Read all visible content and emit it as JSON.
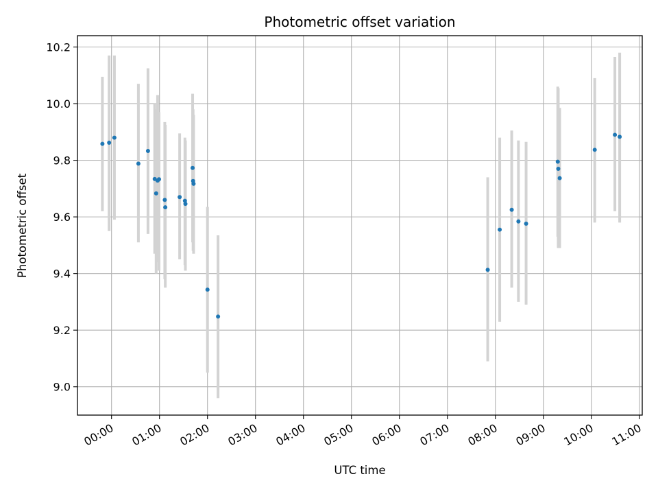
{
  "chart_data": {
    "type": "scatter",
    "title": "Photometric offset variation",
    "xlabel": "UTC time",
    "ylabel": "Photometric offset",
    "x_unit": "hours",
    "xlim": [
      -0.71,
      11.06
    ],
    "ylim": [
      8.9,
      10.24
    ],
    "x_ticks": [
      0,
      1,
      2,
      3,
      4,
      5,
      6,
      7,
      8,
      9,
      10,
      11
    ],
    "x_tick_labels": [
      "00:00",
      "01:00",
      "02:00",
      "03:00",
      "04:00",
      "05:00",
      "06:00",
      "07:00",
      "08:00",
      "09:00",
      "10:00",
      "11:00"
    ],
    "y_ticks": [
      9.0,
      9.2,
      9.4,
      9.6,
      9.8,
      10.0,
      10.2
    ],
    "y_tick_labels": [
      "9.0",
      "9.2",
      "9.4",
      "9.6",
      "9.8",
      "10.0",
      "10.2"
    ],
    "grid": true,
    "colors": {
      "point": "#1f77b4",
      "errorbar": "#d3d3d3",
      "grid": "#b0b0b0"
    },
    "points": [
      {
        "x": -0.19,
        "y": 9.858,
        "lo": 9.62,
        "hi": 10.095
      },
      {
        "x": -0.05,
        "y": 9.862,
        "lo": 9.55,
        "hi": 10.17
      },
      {
        "x": 0.06,
        "y": 9.88,
        "lo": 9.59,
        "hi": 10.17
      },
      {
        "x": 0.56,
        "y": 9.788,
        "lo": 9.51,
        "hi": 10.07
      },
      {
        "x": 0.76,
        "y": 9.833,
        "lo": 9.54,
        "hi": 10.125
      },
      {
        "x": 0.9,
        "y": 9.734,
        "lo": 9.47,
        "hi": 10.0
      },
      {
        "x": 0.93,
        "y": 9.683,
        "lo": 9.4,
        "hi": 9.98
      },
      {
        "x": 0.96,
        "y": 9.728,
        "lo": 9.44,
        "hi": 10.03
      },
      {
        "x": 0.99,
        "y": 9.733,
        "lo": 9.41,
        "hi": 9.97
      },
      {
        "x": 1.11,
        "y": 9.66,
        "lo": 9.38,
        "hi": 9.935
      },
      {
        "x": 1.12,
        "y": 9.634,
        "lo": 9.35,
        "hi": 9.925
      },
      {
        "x": 1.42,
        "y": 9.67,
        "lo": 9.45,
        "hi": 9.895
      },
      {
        "x": 1.53,
        "y": 9.657,
        "lo": 9.43,
        "hi": 9.88
      },
      {
        "x": 1.54,
        "y": 9.646,
        "lo": 9.41,
        "hi": 9.87
      },
      {
        "x": 1.69,
        "y": 9.773,
        "lo": 9.51,
        "hi": 10.035
      },
      {
        "x": 1.7,
        "y": 9.727,
        "lo": 9.48,
        "hi": 9.98
      },
      {
        "x": 1.71,
        "y": 9.717,
        "lo": 9.47,
        "hi": 9.96
      },
      {
        "x": 2.0,
        "y": 9.343,
        "lo": 9.05,
        "hi": 9.635
      },
      {
        "x": 2.22,
        "y": 9.248,
        "lo": 8.96,
        "hi": 9.535
      },
      {
        "x": 7.84,
        "y": 9.413,
        "lo": 9.09,
        "hi": 9.74
      },
      {
        "x": 8.09,
        "y": 9.555,
        "lo": 9.23,
        "hi": 9.88
      },
      {
        "x": 8.34,
        "y": 9.625,
        "lo": 9.35,
        "hi": 9.905
      },
      {
        "x": 8.48,
        "y": 9.584,
        "lo": 9.3,
        "hi": 9.87
      },
      {
        "x": 8.64,
        "y": 9.576,
        "lo": 9.29,
        "hi": 9.865
      },
      {
        "x": 9.3,
        "y": 9.795,
        "lo": 9.53,
        "hi": 10.06
      },
      {
        "x": 9.31,
        "y": 9.77,
        "lo": 9.49,
        "hi": 10.055
      },
      {
        "x": 9.34,
        "y": 9.737,
        "lo": 9.49,
        "hi": 9.985
      },
      {
        "x": 10.07,
        "y": 9.837,
        "lo": 9.58,
        "hi": 10.09
      },
      {
        "x": 10.49,
        "y": 9.89,
        "lo": 9.62,
        "hi": 10.165
      },
      {
        "x": 10.59,
        "y": 9.883,
        "lo": 9.58,
        "hi": 10.18
      }
    ]
  }
}
